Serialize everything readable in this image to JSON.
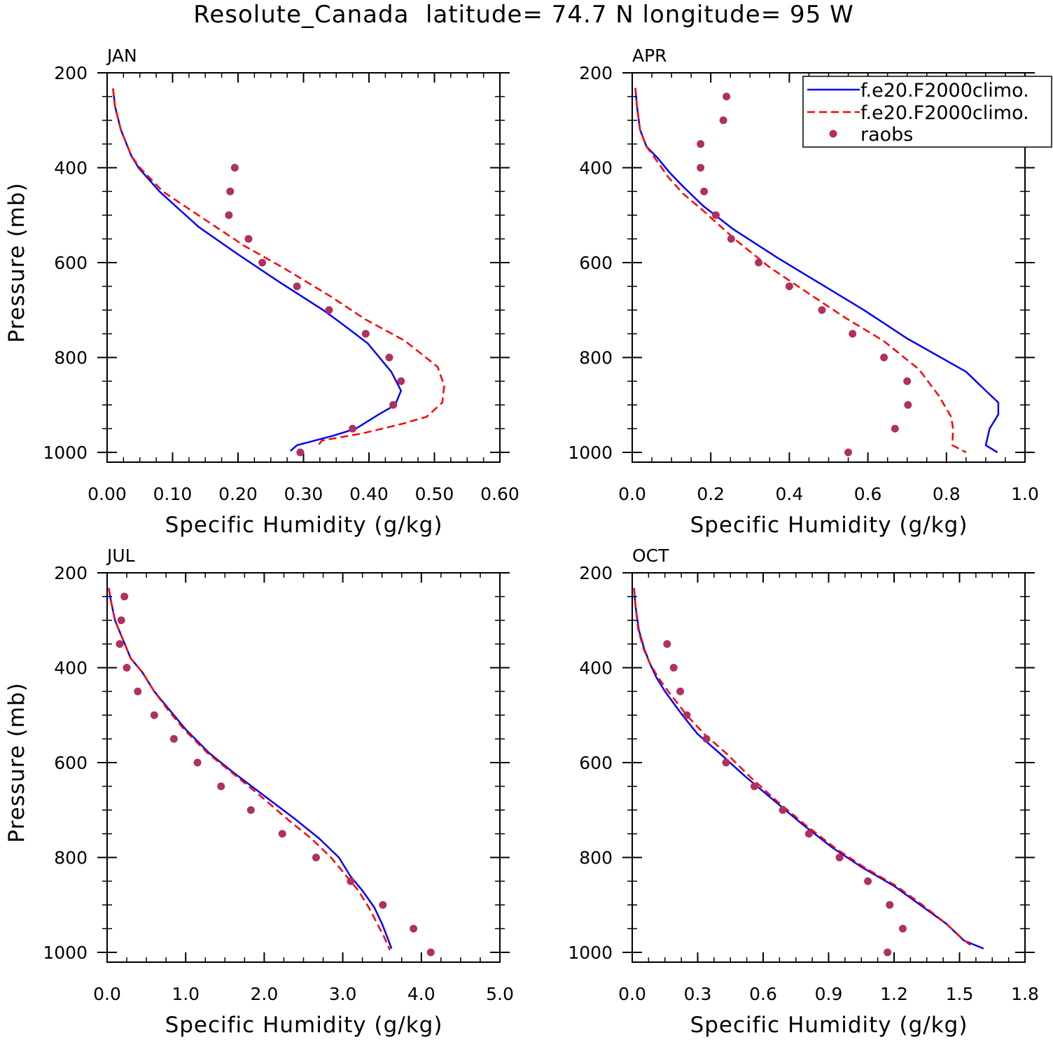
{
  "title": "Resolute_Canada  latitude= 74.7 N longitude= 95 W",
  "colors": {
    "model_solid": "#0000ff",
    "model_dashed": "#ff0000",
    "raobs": "#b03060",
    "axes": "#000000"
  },
  "legend": {
    "placement": "top-right of APR panel",
    "entries": [
      {
        "label": "f.e20.F2000climo.",
        "style": "solid",
        "color": "#0000ff"
      },
      {
        "label": "f.e20.F2000climo.",
        "style": "dashed",
        "color": "#ff0000"
      },
      {
        "label": "raobs",
        "style": "marker",
        "color": "#b03060"
      }
    ]
  },
  "chart_data": [
    {
      "type": "line",
      "panel_label": "JAN",
      "xlabel": "Specific Humidity (g/kg)",
      "ylabel": "Pressure (mb)",
      "xlim": [
        0,
        0.6
      ],
      "ylim": [
        200,
        1000
      ],
      "y_inverted": true,
      "xticks": [
        "0.00",
        "0.10",
        "0.20",
        "0.30",
        "0.40",
        "0.50",
        "0.60"
      ],
      "yticks": [
        "200",
        "400",
        "600",
        "800",
        "1000"
      ],
      "series": [
        {
          "style": "solid",
          "color": "#0000ff",
          "points": [
            [
              0.009,
              233
            ],
            [
              0.012,
              270
            ],
            [
              0.021,
              320
            ],
            [
              0.037,
              375
            ],
            [
              0.048,
              400
            ],
            [
              0.08,
              450
            ],
            [
              0.14,
              525
            ],
            [
              0.197,
              580
            ],
            [
              0.262,
              640
            ],
            [
              0.33,
              700
            ],
            [
              0.355,
              725
            ],
            [
              0.398,
              770
            ],
            [
              0.434,
              830
            ],
            [
              0.449,
              870
            ],
            [
              0.44,
              900
            ],
            [
              0.415,
              920
            ],
            [
              0.38,
              950
            ],
            [
              0.345,
              965
            ],
            [
              0.29,
              985
            ],
            [
              0.28,
              997
            ]
          ]
        },
        {
          "style": "dashed",
          "color": "#ff0000",
          "points": [
            [
              0.009,
              233
            ],
            [
              0.012,
              270
            ],
            [
              0.021,
              320
            ],
            [
              0.037,
              375
            ],
            [
              0.05,
              400
            ],
            [
              0.085,
              450
            ],
            [
              0.15,
              510
            ],
            [
              0.21,
              565
            ],
            [
              0.268,
              610
            ],
            [
              0.34,
              670
            ],
            [
              0.395,
              720
            ],
            [
              0.455,
              765
            ],
            [
              0.505,
              820
            ],
            [
              0.515,
              860
            ],
            [
              0.512,
              895
            ],
            [
              0.488,
              925
            ],
            [
              0.45,
              940
            ],
            [
              0.39,
              960
            ],
            [
              0.328,
              975
            ],
            [
              0.32,
              990
            ]
          ]
        },
        {
          "style": "marker",
          "color": "#b03060",
          "points": [
            [
              0.195,
              400
            ],
            [
              0.188,
              450
            ],
            [
              0.186,
              500
            ],
            [
              0.216,
              550
            ],
            [
              0.237,
              600
            ],
            [
              0.29,
              650
            ],
            [
              0.339,
              700
            ],
            [
              0.395,
              750
            ],
            [
              0.431,
              800
            ],
            [
              0.449,
              850
            ],
            [
              0.437,
              900
            ],
            [
              0.375,
              950
            ],
            [
              0.295,
              1000
            ]
          ]
        }
      ]
    },
    {
      "type": "line",
      "panel_label": "APR",
      "xlabel": "Specific Humidity (g/kg)",
      "ylabel": "",
      "xlim": [
        0,
        1.0
      ],
      "ylim": [
        200,
        1000
      ],
      "y_inverted": true,
      "xticks": [
        "0.0",
        "0.2",
        "0.4",
        "0.6",
        "0.8",
        "1.0"
      ],
      "yticks": [
        "200",
        "400",
        "600",
        "800",
        "1000"
      ],
      "series": [
        {
          "style": "solid",
          "color": "#0000ff",
          "points": [
            [
              0.008,
              232
            ],
            [
              0.012,
              270
            ],
            [
              0.02,
              320
            ],
            [
              0.036,
              355
            ],
            [
              0.065,
              380
            ],
            [
              0.095,
              410
            ],
            [
              0.13,
              440
            ],
            [
              0.18,
              480
            ],
            [
              0.258,
              530
            ],
            [
              0.37,
              590
            ],
            [
              0.47,
              640
            ],
            [
              0.59,
              700
            ],
            [
              0.7,
              760
            ],
            [
              0.85,
              830
            ],
            [
              0.9,
              870
            ],
            [
              0.932,
              895
            ],
            [
              0.932,
              920
            ],
            [
              0.91,
              950
            ],
            [
              0.9,
              985
            ],
            [
              0.93,
              1000
            ]
          ]
        },
        {
          "style": "dashed",
          "color": "#ff0000",
          "points": [
            [
              0.008,
              232
            ],
            [
              0.012,
              270
            ],
            [
              0.02,
              320
            ],
            [
              0.036,
              355
            ],
            [
              0.062,
              385
            ],
            [
              0.092,
              420
            ],
            [
              0.13,
              455
            ],
            [
              0.18,
              490
            ],
            [
              0.26,
              550
            ],
            [
              0.35,
              610
            ],
            [
              0.44,
              660
            ],
            [
              0.54,
              715
            ],
            [
              0.64,
              765
            ],
            [
              0.73,
              825
            ],
            [
              0.78,
              880
            ],
            [
              0.812,
              925
            ],
            [
              0.817,
              950
            ],
            [
              0.815,
              985
            ],
            [
              0.85,
              1000
            ]
          ]
        },
        {
          "style": "marker",
          "color": "#b03060",
          "points": [
            [
              0.24,
              250
            ],
            [
              0.232,
              300
            ],
            [
              0.174,
              350
            ],
            [
              0.174,
              400
            ],
            [
              0.183,
              450
            ],
            [
              0.213,
              500
            ],
            [
              0.252,
              550
            ],
            [
              0.322,
              600
            ],
            [
              0.4,
              650
            ],
            [
              0.483,
              700
            ],
            [
              0.561,
              750
            ],
            [
              0.641,
              800
            ],
            [
              0.7,
              850
            ],
            [
              0.702,
              900
            ],
            [
              0.669,
              950
            ],
            [
              0.55,
              1000
            ]
          ]
        }
      ]
    },
    {
      "type": "line",
      "panel_label": "JUL",
      "xlabel": "Specific Humidity (g/kg)",
      "ylabel": "Pressure (mb)",
      "xlim": [
        0,
        5.0
      ],
      "ylim": [
        200,
        1000
      ],
      "y_inverted": true,
      "xticks": [
        "0.0",
        "1.0",
        "2.0",
        "3.0",
        "4.0",
        "5.0"
      ],
      "yticks": [
        "200",
        "400",
        "600",
        "800",
        "1000"
      ],
      "series": [
        {
          "style": "solid",
          "color": "#0000ff",
          "points": [
            [
              0.02,
              232
            ],
            [
              0.05,
              260
            ],
            [
              0.1,
              300
            ],
            [
              0.2,
              340
            ],
            [
              0.3,
              380
            ],
            [
              0.45,
              410
            ],
            [
              0.6,
              450
            ],
            [
              0.8,
              490
            ],
            [
              1.0,
              530
            ],
            [
              1.3,
              580
            ],
            [
              1.6,
              620
            ],
            [
              2.0,
              670
            ],
            [
              2.4,
              720
            ],
            [
              2.7,
              760
            ],
            [
              2.95,
              800
            ],
            [
              3.1,
              840
            ],
            [
              3.25,
              870
            ],
            [
              3.4,
              905
            ],
            [
              3.5,
              940
            ],
            [
              3.56,
              965
            ],
            [
              3.62,
              992
            ]
          ]
        },
        {
          "style": "dashed",
          "color": "#ff0000",
          "points": [
            [
              0.02,
              232
            ],
            [
              0.05,
              260
            ],
            [
              0.1,
              300
            ],
            [
              0.2,
              340
            ],
            [
              0.3,
              380
            ],
            [
              0.45,
              410
            ],
            [
              0.6,
              450
            ],
            [
              0.78,
              490
            ],
            [
              0.98,
              530
            ],
            [
              1.28,
              580
            ],
            [
              1.58,
              620
            ],
            [
              1.95,
              670
            ],
            [
              2.3,
              720
            ],
            [
              2.6,
              760
            ],
            [
              2.85,
              800
            ],
            [
              3.05,
              840
            ],
            [
              3.2,
              870
            ],
            [
              3.33,
              905
            ],
            [
              3.44,
              940
            ],
            [
              3.52,
              965
            ],
            [
              3.6,
              995
            ]
          ]
        },
        {
          "style": "marker",
          "color": "#b03060",
          "points": [
            [
              0.22,
              250
            ],
            [
              0.18,
              300
            ],
            [
              0.16,
              350
            ],
            [
              0.25,
              400
            ],
            [
              0.39,
              450
            ],
            [
              0.6,
              500
            ],
            [
              0.85,
              550
            ],
            [
              1.15,
              600
            ],
            [
              1.45,
              650
            ],
            [
              1.83,
              700
            ],
            [
              2.23,
              750
            ],
            [
              2.66,
              800
            ],
            [
              3.1,
              850
            ],
            [
              3.51,
              900
            ],
            [
              3.9,
              950
            ],
            [
              4.12,
              1000
            ]
          ]
        }
      ]
    },
    {
      "type": "line",
      "panel_label": "OCT",
      "xlabel": "Specific Humidity (g/kg)",
      "ylabel": "",
      "xlim": [
        0,
        1.8
      ],
      "ylim": [
        200,
        1000
      ],
      "y_inverted": true,
      "xticks": [
        "0.0",
        "0.3",
        "0.6",
        "0.9",
        "1.2",
        "1.5",
        "1.8"
      ],
      "yticks": [
        "200",
        "400",
        "600",
        "800",
        "1000"
      ],
      "series": [
        {
          "style": "solid",
          "color": "#0000ff",
          "points": [
            [
              0.008,
              232
            ],
            [
              0.015,
              270
            ],
            [
              0.03,
              320
            ],
            [
              0.055,
              360
            ],
            [
              0.08,
              390
            ],
            [
              0.11,
              420
            ],
            [
              0.15,
              450
            ],
            [
              0.23,
              500
            ],
            [
              0.3,
              540
            ],
            [
              0.4,
              580
            ],
            [
              0.52,
              630
            ],
            [
              0.65,
              680
            ],
            [
              0.78,
              730
            ],
            [
              0.92,
              780
            ],
            [
              1.05,
              820
            ],
            [
              1.2,
              860
            ],
            [
              1.32,
              900
            ],
            [
              1.44,
              940
            ],
            [
              1.52,
              975
            ],
            [
              1.61,
              992
            ]
          ]
        },
        {
          "style": "dashed",
          "color": "#ff0000",
          "points": [
            [
              0.008,
              232
            ],
            [
              0.015,
              270
            ],
            [
              0.028,
              320
            ],
            [
              0.052,
              360
            ],
            [
              0.08,
              390
            ],
            [
              0.118,
              420
            ],
            [
              0.165,
              450
            ],
            [
              0.25,
              500
            ],
            [
              0.33,
              540
            ],
            [
              0.43,
              580
            ],
            [
              0.54,
              630
            ],
            [
              0.66,
              680
            ],
            [
              0.79,
              730
            ],
            [
              0.93,
              780
            ],
            [
              1.06,
              820
            ],
            [
              1.21,
              860
            ],
            [
              1.33,
              900
            ],
            [
              1.44,
              940
            ],
            [
              1.51,
              970
            ],
            [
              1.55,
              985
            ]
          ]
        },
        {
          "style": "marker",
          "color": "#b03060",
          "points": [
            [
              0.16,
              350
            ],
            [
              0.19,
              400
            ],
            [
              0.22,
              450
            ],
            [
              0.25,
              500
            ],
            [
              0.34,
              550
            ],
            [
              0.43,
              600
            ],
            [
              0.56,
              650
            ],
            [
              0.69,
              700
            ],
            [
              0.81,
              750
            ],
            [
              0.95,
              800
            ],
            [
              1.08,
              850
            ],
            [
              1.18,
              900
            ],
            [
              1.24,
              950
            ],
            [
              1.17,
              1000
            ]
          ]
        }
      ]
    }
  ]
}
